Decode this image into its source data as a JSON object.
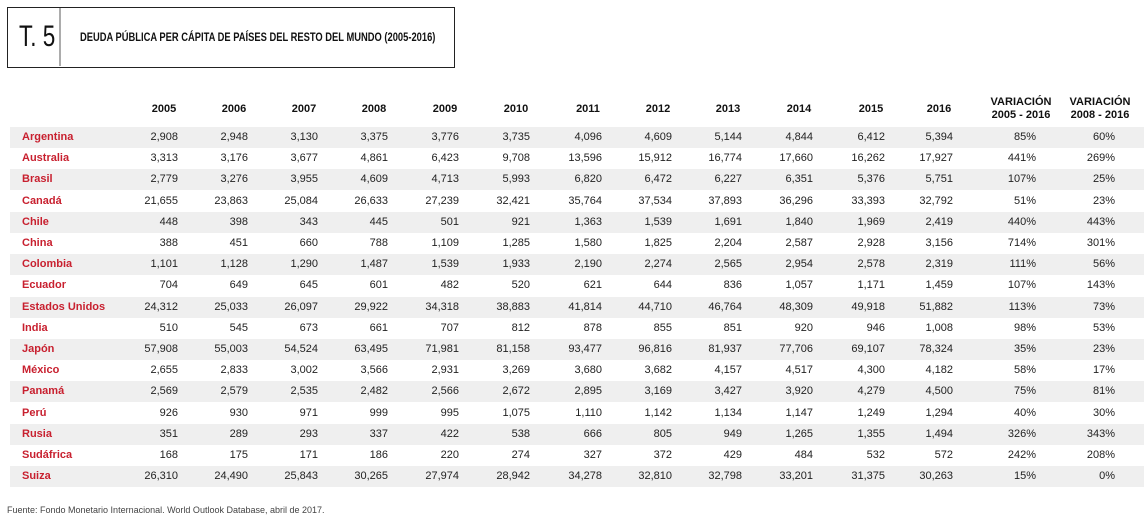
{
  "header": {
    "number": "T. 5",
    "title": "DEUDA PÚBLICA PER CÁPITA DE PAÍSES DEL RESTO DEL MUNDO (2005-2016)"
  },
  "table": {
    "columns": [
      "2005",
      "2006",
      "2007",
      "2008",
      "2009",
      "2010",
      "2011",
      "2012",
      "2013",
      "2014",
      "2015",
      "2016",
      [
        "VARIACIÓN",
        "2005 - 2016"
      ],
      [
        "VARIACIÓN",
        "2008 - 2016"
      ]
    ],
    "rows": [
      [
        "Argentina",
        "2,908",
        "2,948",
        "3,130",
        "3,375",
        "3,776",
        "3,735",
        "4,096",
        "4,609",
        "5,144",
        "4,844",
        "6,412",
        "5,394",
        "85%",
        "60%"
      ],
      [
        "Australia",
        "3,313",
        "3,176",
        "3,677",
        "4,861",
        "6,423",
        "9,708",
        "13,596",
        "15,912",
        "16,774",
        "17,660",
        "16,262",
        "17,927",
        "441%",
        "269%"
      ],
      [
        "Brasil",
        "2,779",
        "3,276",
        "3,955",
        "4,609",
        "4,713",
        "5,993",
        "6,820",
        "6,472",
        "6,227",
        "6,351",
        "5,376",
        "5,751",
        "107%",
        "25%"
      ],
      [
        "Canadá",
        "21,655",
        "23,863",
        "25,084",
        "26,633",
        "27,239",
        "32,421",
        "35,764",
        "37,534",
        "37,893",
        "36,296",
        "33,393",
        "32,792",
        "51%",
        "23%"
      ],
      [
        "Chile",
        "448",
        "398",
        "343",
        "445",
        "501",
        "921",
        "1,363",
        "1,539",
        "1,691",
        "1,840",
        "1,969",
        "2,419",
        "440%",
        "443%"
      ],
      [
        "China",
        "388",
        "451",
        "660",
        "788",
        "1,109",
        "1,285",
        "1,580",
        "1,825",
        "2,204",
        "2,587",
        "2,928",
        "3,156",
        "714%",
        "301%"
      ],
      [
        "Colombia",
        "1,101",
        "1,128",
        "1,290",
        "1,487",
        "1,539",
        "1,933",
        "2,190",
        "2,274",
        "2,565",
        "2,954",
        "2,578",
        "2,319",
        "111%",
        "56%"
      ],
      [
        "Ecuador",
        "704",
        "649",
        "645",
        "601",
        "482",
        "520",
        "621",
        "644",
        "836",
        "1,057",
        "1,171",
        "1,459",
        "107%",
        "143%"
      ],
      [
        "Estados Unidos",
        "24,312",
        "25,033",
        "26,097",
        "29,922",
        "34,318",
        "38,883",
        "41,814",
        "44,710",
        "46,764",
        "48,309",
        "49,918",
        "51,882",
        "113%",
        "73%"
      ],
      [
        "India",
        "510",
        "545",
        "673",
        "661",
        "707",
        "812",
        "878",
        "855",
        "851",
        "920",
        "946",
        "1,008",
        "98%",
        "53%"
      ],
      [
        "Japón",
        "57,908",
        "55,003",
        "54,524",
        "63,495",
        "71,981",
        "81,158",
        "93,477",
        "96,816",
        "81,937",
        "77,706",
        "69,107",
        "78,324",
        "35%",
        "23%"
      ],
      [
        "México",
        "2,655",
        "2,833",
        "3,002",
        "3,566",
        "2,931",
        "3,269",
        "3,680",
        "3,682",
        "4,157",
        "4,517",
        "4,300",
        "4,182",
        "58%",
        "17%"
      ],
      [
        "Panamá",
        "2,569",
        "2,579",
        "2,535",
        "2,482",
        "2,566",
        "2,672",
        "2,895",
        "3,169",
        "3,427",
        "3,920",
        "4,279",
        "4,500",
        "75%",
        "81%"
      ],
      [
        "Perú",
        "926",
        "930",
        "971",
        "999",
        "995",
        "1,075",
        "1,110",
        "1,142",
        "1,134",
        "1,147",
        "1,249",
        "1,294",
        "40%",
        "30%"
      ],
      [
        "Rusia",
        "351",
        "289",
        "293",
        "337",
        "422",
        "538",
        "666",
        "805",
        "949",
        "1,265",
        "1,355",
        "1,494",
        "326%",
        "343%"
      ],
      [
        "Sudáfrica",
        "168",
        "175",
        "171",
        "186",
        "220",
        "274",
        "327",
        "372",
        "429",
        "484",
        "532",
        "572",
        "242%",
        "208%"
      ],
      [
        "Suiza",
        "26,310",
        "24,490",
        "25,843",
        "30,265",
        "27,974",
        "28,942",
        "34,278",
        "32,810",
        "32,798",
        "33,201",
        "31,375",
        "30,263",
        "15%",
        "0%"
      ]
    ]
  },
  "footer": {
    "source": "Fuente: Fondo Monetario Internacional. World Outlook Database, abril de 2017."
  }
}
